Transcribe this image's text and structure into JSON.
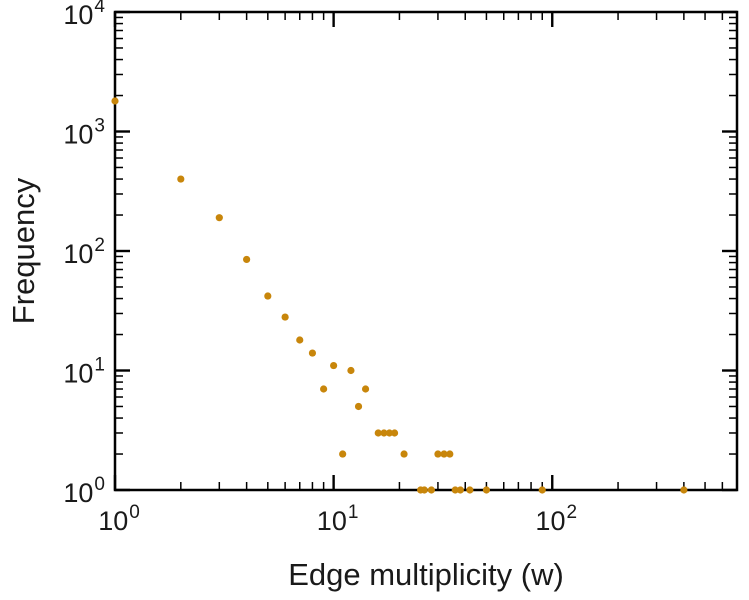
{
  "colors": {
    "background": "#ffffff",
    "frame": "#000000",
    "marker": "#C8860B",
    "text": "#1a1a1a"
  },
  "chart_data": {
    "type": "scatter",
    "title": "",
    "xlabel": "Edge multiplicity (w)",
    "ylabel": "Frequency",
    "xscale": "log",
    "yscale": "log",
    "xlim": [
      1,
      700
    ],
    "ylim": [
      1,
      10000
    ],
    "grid": false,
    "legend": false,
    "x_ticks": [
      {
        "value": 1,
        "base": "10",
        "exp": "0"
      },
      {
        "value": 10,
        "base": "10",
        "exp": "1"
      },
      {
        "value": 100,
        "base": "10",
        "exp": "2"
      }
    ],
    "y_ticks": [
      {
        "value": 1,
        "base": "10",
        "exp": "0"
      },
      {
        "value": 10,
        "base": "10",
        "exp": "1"
      },
      {
        "value": 100,
        "base": "10",
        "exp": "2"
      },
      {
        "value": 1000,
        "base": "10",
        "exp": "3"
      },
      {
        "value": 10000,
        "base": "10",
        "exp": "4"
      }
    ],
    "points": [
      [
        1,
        1800
      ],
      [
        2,
        400
      ],
      [
        3,
        190
      ],
      [
        4,
        85
      ],
      [
        5,
        42
      ],
      [
        6,
        28
      ],
      [
        7,
        18
      ],
      [
        8,
        14
      ],
      [
        9,
        7
      ],
      [
        10,
        11
      ],
      [
        12,
        10
      ],
      [
        11,
        2
      ],
      [
        13,
        5
      ],
      [
        14,
        7
      ],
      [
        16,
        3
      ],
      [
        17,
        3
      ],
      [
        18,
        3
      ],
      [
        19,
        3
      ],
      [
        21,
        2
      ],
      [
        25,
        1
      ],
      [
        26,
        1
      ],
      [
        28,
        1
      ],
      [
        30,
        2
      ],
      [
        32,
        2
      ],
      [
        34,
        2
      ],
      [
        36,
        1
      ],
      [
        38,
        1
      ],
      [
        42,
        1
      ],
      [
        50,
        1
      ],
      [
        90,
        1
      ],
      [
        400,
        1
      ]
    ],
    "marker_radius": 3.6
  }
}
